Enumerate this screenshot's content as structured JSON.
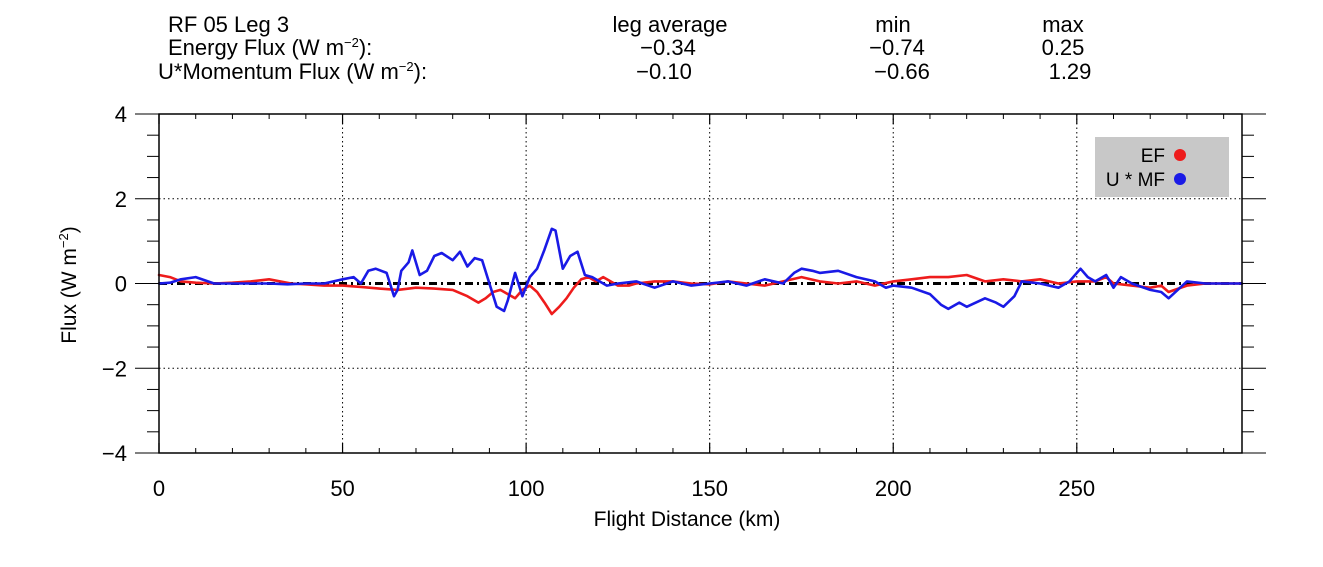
{
  "header": {
    "leg_title": "RF 05 Leg 3",
    "col_avg": "leg average",
    "col_min": "min",
    "col_max": "max",
    "ef_label_pre": "Energy Flux (W m",
    "ef_label_sup": "−2",
    "ef_label_post": "):",
    "mf_label_pre": "U*Momentum Flux (W m",
    "mf_label_sup": "−2",
    "mf_label_post": "):",
    "ef_avg": "−0.34",
    "ef_min": "−0.74",
    "ef_max": "0.25",
    "mf_avg": "−0.10",
    "mf_min": "−0.66",
    "mf_max": "1.29"
  },
  "chart_data": {
    "type": "line",
    "title": "",
    "xlabel": "Flight Distance (km)",
    "ylabel_pre": "Flux (W m",
    "ylabel_sup": "−2",
    "ylabel_post": ")",
    "xlim": [
      0,
      295
    ],
    "ylim": [
      -4,
      4
    ],
    "x_ticks": [
      0,
      50,
      100,
      150,
      200,
      250
    ],
    "x_tick_labels": [
      "0",
      "50",
      "100",
      "150",
      "200",
      "250"
    ],
    "y_ticks": [
      4,
      2,
      0,
      -2,
      -4
    ],
    "y_tick_labels": [
      "4",
      "2",
      "0",
      "−2",
      "−4"
    ],
    "grid": true,
    "legend_position": "top-right",
    "zero_line": true,
    "series": [
      {
        "name": "EF",
        "color": "#ee1c1c",
        "x": [
          0,
          3,
          6,
          10,
          15,
          20,
          25,
          30,
          33,
          36,
          40,
          45,
          50,
          55,
          60,
          65,
          70,
          75,
          80,
          84,
          87,
          89,
          91,
          93,
          95,
          97,
          99,
          101,
          103,
          105,
          107,
          109,
          111,
          113,
          115,
          117,
          119,
          121,
          123,
          125,
          128,
          130,
          135,
          140,
          145,
          150,
          155,
          160,
          165,
          170,
          175,
          180,
          185,
          190,
          195,
          200,
          205,
          210,
          215,
          220,
          225,
          230,
          235,
          240,
          245,
          250,
          255,
          258,
          260,
          265,
          270,
          273,
          275,
          280,
          285,
          290,
          295
        ],
        "y": [
          0.2,
          0.15,
          0.05,
          0.02,
          0.0,
          0.02,
          0.05,
          0.1,
          0.05,
          0.0,
          -0.02,
          -0.05,
          -0.05,
          -0.08,
          -0.12,
          -0.15,
          -0.1,
          -0.12,
          -0.15,
          -0.3,
          -0.45,
          -0.35,
          -0.2,
          -0.15,
          -0.25,
          -0.35,
          -0.15,
          -0.05,
          -0.2,
          -0.45,
          -0.72,
          -0.55,
          -0.35,
          -0.1,
          0.1,
          0.15,
          0.05,
          0.15,
          0.05,
          -0.05,
          -0.05,
          0.0,
          0.05,
          0.05,
          0.0,
          -0.02,
          0.05,
          0.0,
          -0.05,
          0.05,
          0.15,
          0.05,
          0.0,
          0.05,
          -0.05,
          0.05,
          0.1,
          0.15,
          0.15,
          0.2,
          0.05,
          0.1,
          0.05,
          0.1,
          0.0,
          0.05,
          0.05,
          0.15,
          0.0,
          -0.05,
          -0.1,
          -0.05,
          -0.2,
          -0.05,
          0.0,
          0.0,
          0.0
        ]
      },
      {
        "name": "U * MF",
        "color": "#1a1ae6",
        "x": [
          0,
          3,
          6,
          10,
          15,
          20,
          25,
          30,
          35,
          40,
          45,
          50,
          53,
          55,
          57,
          59,
          62,
          64,
          65,
          66,
          68,
          69,
          71,
          73,
          75,
          77,
          80,
          82,
          84,
          86,
          88,
          90,
          92,
          94,
          95,
          97,
          99,
          101,
          103,
          105,
          107,
          108,
          110,
          112,
          114,
          116,
          118,
          120,
          122,
          125,
          130,
          135,
          140,
          145,
          150,
          155,
          160,
          165,
          170,
          173,
          175,
          178,
          180,
          185,
          190,
          195,
          198,
          200,
          205,
          210,
          213,
          215,
          218,
          220,
          225,
          228,
          230,
          233,
          235,
          240,
          245,
          248,
          251,
          253,
          255,
          258,
          260,
          262,
          265,
          270,
          273,
          275,
          280,
          285,
          290,
          295
        ],
        "y": [
          0.0,
          0.02,
          0.1,
          0.15,
          0.0,
          0.0,
          0.0,
          0.0,
          -0.02,
          0.0,
          0.0,
          0.1,
          0.15,
          0.0,
          0.3,
          0.35,
          0.25,
          -0.3,
          -0.15,
          0.3,
          0.5,
          0.78,
          0.2,
          0.3,
          0.65,
          0.72,
          0.55,
          0.75,
          0.4,
          0.6,
          0.55,
          0.0,
          -0.55,
          -0.65,
          -0.4,
          0.25,
          -0.3,
          0.15,
          0.35,
          0.8,
          1.29,
          1.25,
          0.35,
          0.65,
          0.75,
          0.2,
          0.15,
          0.05,
          -0.05,
          0.0,
          0.05,
          -0.1,
          0.05,
          -0.05,
          0.0,
          0.05,
          -0.05,
          0.1,
          0.0,
          0.25,
          0.35,
          0.3,
          0.25,
          0.3,
          0.15,
          0.05,
          -0.1,
          -0.05,
          -0.1,
          -0.25,
          -0.5,
          -0.6,
          -0.45,
          -0.55,
          -0.35,
          -0.45,
          -0.55,
          -0.3,
          0.05,
          0.0,
          -0.1,
          0.05,
          0.35,
          0.15,
          0.05,
          0.2,
          -0.1,
          0.15,
          0.0,
          -0.15,
          -0.2,
          -0.35,
          0.05,
          0.0,
          0.0,
          0.0
        ]
      }
    ]
  }
}
